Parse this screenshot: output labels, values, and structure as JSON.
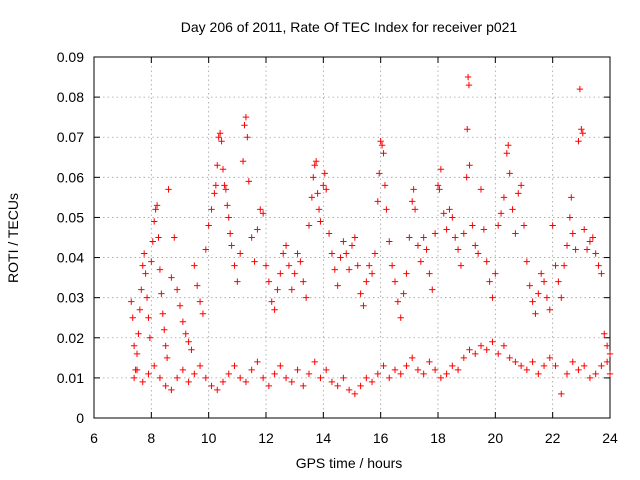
{
  "chart_data": {
    "type": "scatter",
    "title": "Day 206 of 2011, Rate Of TEC Index for receiver p021",
    "xlabel": "GPS time / hours",
    "ylabel": "ROTI / TECUs",
    "xlim": [
      6,
      24
    ],
    "ylim": [
      0,
      0.09
    ],
    "xticks": [
      "6",
      "8",
      "10",
      "12",
      "14",
      "16",
      "18",
      "20",
      "22",
      "24"
    ],
    "yticks": [
      "0",
      "0.01",
      "0.02",
      "0.03",
      "0.04",
      "0.05",
      "0.06",
      "0.07",
      "0.08",
      "0.09"
    ],
    "grid": true,
    "marker": "+",
    "color": "#ff0000",
    "series": [
      {
        "points": [
          [
            7.3,
            0.029
          ],
          [
            7.35,
            0.025
          ],
          [
            7.4,
            0.018
          ],
          [
            7.45,
            0.012
          ],
          [
            7.5,
            0.016
          ],
          [
            7.55,
            0.021
          ],
          [
            7.6,
            0.027
          ],
          [
            7.65,
            0.032
          ],
          [
            7.7,
            0.038
          ],
          [
            7.75,
            0.041
          ],
          [
            7.8,
            0.036
          ],
          [
            7.85,
            0.03
          ],
          [
            7.9,
            0.025
          ],
          [
            7.95,
            0.02
          ],
          [
            8.0,
            0.039
          ],
          [
            8.05,
            0.044
          ],
          [
            8.1,
            0.049
          ],
          [
            8.15,
            0.052
          ],
          [
            8.2,
            0.053
          ],
          [
            8.25,
            0.045
          ],
          [
            8.3,
            0.037
          ],
          [
            8.35,
            0.031
          ],
          [
            8.4,
            0.026
          ],
          [
            8.45,
            0.022
          ],
          [
            8.5,
            0.018
          ],
          [
            8.55,
            0.015
          ],
          [
            8.6,
            0.057
          ],
          [
            8.7,
            0.035
          ],
          [
            8.8,
            0.045
          ],
          [
            8.9,
            0.032
          ],
          [
            9.0,
            0.028
          ],
          [
            9.1,
            0.024
          ],
          [
            9.2,
            0.021
          ],
          [
            9.3,
            0.019
          ],
          [
            9.4,
            0.017
          ],
          [
            9.5,
            0.038
          ],
          [
            9.6,
            0.033
          ],
          [
            9.7,
            0.029
          ],
          [
            9.8,
            0.026
          ],
          [
            9.9,
            0.042
          ],
          [
            10.0,
            0.048
          ],
          [
            10.1,
            0.052
          ],
          [
            10.2,
            0.056
          ],
          [
            10.25,
            0.058
          ],
          [
            10.3,
            0.063
          ],
          [
            10.35,
            0.07
          ],
          [
            10.4,
            0.071
          ],
          [
            10.45,
            0.069
          ],
          [
            10.5,
            0.062
          ],
          [
            10.55,
            0.058
          ],
          [
            10.6,
            0.057
          ],
          [
            10.65,
            0.053
          ],
          [
            10.7,
            0.05
          ],
          [
            10.75,
            0.046
          ],
          [
            10.8,
            0.043
          ],
          [
            10.9,
            0.038
          ],
          [
            11.0,
            0.034
          ],
          [
            11.1,
            0.041
          ],
          [
            11.2,
            0.064
          ],
          [
            11.25,
            0.073
          ],
          [
            11.3,
            0.075
          ],
          [
            11.35,
            0.07
          ],
          [
            11.4,
            0.059
          ],
          [
            11.5,
            0.045
          ],
          [
            11.6,
            0.039
          ],
          [
            11.7,
            0.047
          ],
          [
            11.8,
            0.052
          ],
          [
            11.9,
            0.051
          ],
          [
            12.0,
            0.038
          ],
          [
            12.1,
            0.034
          ],
          [
            12.2,
            0.029
          ],
          [
            12.3,
            0.027
          ],
          [
            12.4,
            0.032
          ],
          [
            12.5,
            0.036
          ],
          [
            12.6,
            0.041
          ],
          [
            12.7,
            0.043
          ],
          [
            12.8,
            0.038
          ],
          [
            12.9,
            0.032
          ],
          [
            13.0,
            0.036
          ],
          [
            13.1,
            0.041
          ],
          [
            13.2,
            0.039
          ],
          [
            13.3,
            0.034
          ],
          [
            13.4,
            0.03
          ],
          [
            13.5,
            0.048
          ],
          [
            13.6,
            0.055
          ],
          [
            13.65,
            0.06
          ],
          [
            13.7,
            0.063
          ],
          [
            13.75,
            0.064
          ],
          [
            13.8,
            0.056
          ],
          [
            13.85,
            0.052
          ],
          [
            13.9,
            0.049
          ],
          [
            14.0,
            0.058
          ],
          [
            14.05,
            0.061
          ],
          [
            14.1,
            0.057
          ],
          [
            14.2,
            0.046
          ],
          [
            14.3,
            0.041
          ],
          [
            14.4,
            0.037
          ],
          [
            14.5,
            0.033
          ],
          [
            14.6,
            0.04
          ],
          [
            14.7,
            0.044
          ],
          [
            14.8,
            0.041
          ],
          [
            14.9,
            0.037
          ],
          [
            15.0,
            0.043
          ],
          [
            15.1,
            0.045
          ],
          [
            15.2,
            0.038
          ],
          [
            15.3,
            0.031
          ],
          [
            15.4,
            0.028
          ],
          [
            15.5,
            0.034
          ],
          [
            15.6,
            0.038
          ],
          [
            15.7,
            0.036
          ],
          [
            15.8,
            0.041
          ],
          [
            15.9,
            0.054
          ],
          [
            15.95,
            0.061
          ],
          [
            16.0,
            0.069
          ],
          [
            16.05,
            0.068
          ],
          [
            16.1,
            0.066
          ],
          [
            16.15,
            0.058
          ],
          [
            16.2,
            0.052
          ],
          [
            16.3,
            0.044
          ],
          [
            16.4,
            0.038
          ],
          [
            16.5,
            0.034
          ],
          [
            16.6,
            0.029
          ],
          [
            16.7,
            0.025
          ],
          [
            16.8,
            0.031
          ],
          [
            16.9,
            0.036
          ],
          [
            17.0,
            0.045
          ],
          [
            17.1,
            0.054
          ],
          [
            17.15,
            0.057
          ],
          [
            17.2,
            0.052
          ],
          [
            17.3,
            0.043
          ],
          [
            17.4,
            0.039
          ],
          [
            17.5,
            0.045
          ],
          [
            17.6,
            0.042
          ],
          [
            17.7,
            0.036
          ],
          [
            17.8,
            0.032
          ],
          [
            17.9,
            0.046
          ],
          [
            18.0,
            0.058
          ],
          [
            18.05,
            0.057
          ],
          [
            18.1,
            0.062
          ],
          [
            18.2,
            0.051
          ],
          [
            18.3,
            0.047
          ],
          [
            18.4,
            0.052
          ],
          [
            18.5,
            0.05
          ],
          [
            18.6,
            0.045
          ],
          [
            18.7,
            0.042
          ],
          [
            18.8,
            0.038
          ],
          [
            18.9,
            0.046
          ],
          [
            19.0,
            0.06
          ],
          [
            19.02,
            0.072
          ],
          [
            19.05,
            0.085
          ],
          [
            19.08,
            0.083
          ],
          [
            19.1,
            0.063
          ],
          [
            19.2,
            0.048
          ],
          [
            19.3,
            0.043
          ],
          [
            19.4,
            0.041
          ],
          [
            19.5,
            0.057
          ],
          [
            19.6,
            0.047
          ],
          [
            19.7,
            0.039
          ],
          [
            19.8,
            0.034
          ],
          [
            19.9,
            0.03
          ],
          [
            20.0,
            0.036
          ],
          [
            20.1,
            0.048
          ],
          [
            20.2,
            0.051
          ],
          [
            20.3,
            0.055
          ],
          [
            20.4,
            0.066
          ],
          [
            20.45,
            0.068
          ],
          [
            20.5,
            0.061
          ],
          [
            20.6,
            0.052
          ],
          [
            20.7,
            0.046
          ],
          [
            20.8,
            0.056
          ],
          [
            20.9,
            0.058
          ],
          [
            21.0,
            0.048
          ],
          [
            21.1,
            0.039
          ],
          [
            21.2,
            0.033
          ],
          [
            21.3,
            0.029
          ],
          [
            21.4,
            0.026
          ],
          [
            21.5,
            0.031
          ],
          [
            21.6,
            0.036
          ],
          [
            21.7,
            0.034
          ],
          [
            21.8,
            0.03
          ],
          [
            21.9,
            0.027
          ],
          [
            22.0,
            0.048
          ],
          [
            22.1,
            0.038
          ],
          [
            22.2,
            0.034
          ],
          [
            22.3,
            0.03
          ],
          [
            22.4,
            0.038
          ],
          [
            22.5,
            0.043
          ],
          [
            22.6,
            0.05
          ],
          [
            22.65,
            0.055
          ],
          [
            22.7,
            0.046
          ],
          [
            22.8,
            0.042
          ],
          [
            22.9,
            0.069
          ],
          [
            22.95,
            0.082
          ],
          [
            23.0,
            0.072
          ],
          [
            23.05,
            0.071
          ],
          [
            23.1,
            0.047
          ],
          [
            23.2,
            0.042
          ],
          [
            23.3,
            0.044
          ],
          [
            23.4,
            0.045
          ],
          [
            23.5,
            0.041
          ],
          [
            23.6,
            0.038
          ],
          [
            23.7,
            0.036
          ],
          [
            23.8,
            0.021
          ],
          [
            23.9,
            0.018
          ],
          [
            24.0,
            0.016
          ],
          [
            7.4,
            0.01
          ],
          [
            7.5,
            0.012
          ],
          [
            7.7,
            0.009
          ],
          [
            7.9,
            0.011
          ],
          [
            8.1,
            0.013
          ],
          [
            8.3,
            0.01
          ],
          [
            8.5,
            0.008
          ],
          [
            8.7,
            0.007
          ],
          [
            8.9,
            0.01
          ],
          [
            9.1,
            0.012
          ],
          [
            9.3,
            0.009
          ],
          [
            9.5,
            0.011
          ],
          [
            9.7,
            0.013
          ],
          [
            9.9,
            0.01
          ],
          [
            10.1,
            0.008
          ],
          [
            10.3,
            0.007
          ],
          [
            10.5,
            0.009
          ],
          [
            10.7,
            0.011
          ],
          [
            10.9,
            0.013
          ],
          [
            11.1,
            0.01
          ],
          [
            11.3,
            0.009
          ],
          [
            11.5,
            0.012
          ],
          [
            11.7,
            0.014
          ],
          [
            11.9,
            0.01
          ],
          [
            12.1,
            0.008
          ],
          [
            12.3,
            0.011
          ],
          [
            12.5,
            0.013
          ],
          [
            12.7,
            0.01
          ],
          [
            12.9,
            0.009
          ],
          [
            13.1,
            0.012
          ],
          [
            13.3,
            0.008
          ],
          [
            13.5,
            0.011
          ],
          [
            13.7,
            0.014
          ],
          [
            13.9,
            0.01
          ],
          [
            14.1,
            0.012
          ],
          [
            14.3,
            0.009
          ],
          [
            14.5,
            0.008
          ],
          [
            14.7,
            0.01
          ],
          [
            14.9,
            0.007
          ],
          [
            15.1,
            0.006
          ],
          [
            15.3,
            0.008
          ],
          [
            15.5,
            0.01
          ],
          [
            15.7,
            0.009
          ],
          [
            15.9,
            0.011
          ],
          [
            16.1,
            0.013
          ],
          [
            16.3,
            0.01
          ],
          [
            16.5,
            0.012
          ],
          [
            16.7,
            0.011
          ],
          [
            16.9,
            0.013
          ],
          [
            17.1,
            0.015
          ],
          [
            17.3,
            0.012
          ],
          [
            17.5,
            0.011
          ],
          [
            17.7,
            0.014
          ],
          [
            17.9,
            0.012
          ],
          [
            18.1,
            0.01
          ],
          [
            18.3,
            0.011
          ],
          [
            18.5,
            0.013
          ],
          [
            18.7,
            0.012
          ],
          [
            18.9,
            0.015
          ],
          [
            19.1,
            0.017
          ],
          [
            19.3,
            0.016
          ],
          [
            19.5,
            0.018
          ],
          [
            19.7,
            0.017
          ],
          [
            19.9,
            0.019
          ],
          [
            20.1,
            0.016
          ],
          [
            20.3,
            0.018
          ],
          [
            20.5,
            0.015
          ],
          [
            20.7,
            0.014
          ],
          [
            20.9,
            0.013
          ],
          [
            21.1,
            0.012
          ],
          [
            21.3,
            0.014
          ],
          [
            21.5,
            0.011
          ],
          [
            21.7,
            0.013
          ],
          [
            21.9,
            0.015
          ],
          [
            22.1,
            0.013
          ],
          [
            22.3,
            0.006
          ],
          [
            22.5,
            0.011
          ],
          [
            22.7,
            0.014
          ],
          [
            22.9,
            0.012
          ],
          [
            23.1,
            0.013
          ],
          [
            23.3,
            0.01
          ],
          [
            23.5,
            0.011
          ],
          [
            23.7,
            0.013
          ],
          [
            23.9,
            0.014
          ],
          [
            24.0,
            0.011
          ]
        ]
      }
    ]
  }
}
